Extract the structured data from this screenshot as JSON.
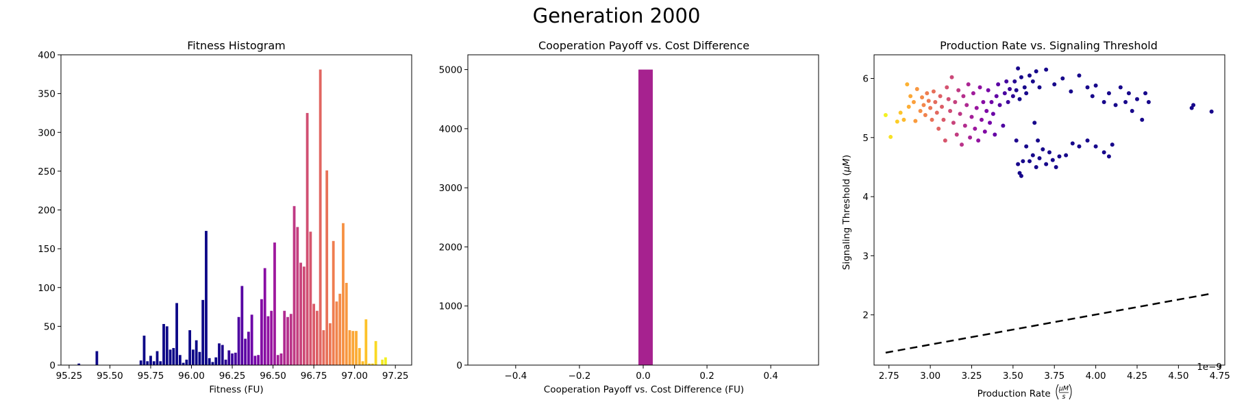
{
  "figure": {
    "suptitle": "Generation 2000"
  },
  "chart_data": [
    {
      "type": "bar",
      "title": "Fitness Histogram",
      "xlabel": "Fitness (FU)",
      "ylabel": "",
      "xlim": [
        95.2,
        97.35
      ],
      "ylim": [
        0,
        400
      ],
      "xticks": [
        95.25,
        95.5,
        95.75,
        96.0,
        96.25,
        96.5,
        96.75,
        97.0,
        97.25
      ],
      "xtick_labels": [
        "95.25",
        "95.50",
        "95.75",
        "96.00",
        "96.25",
        "96.50",
        "96.75",
        "97.00",
        "97.25"
      ],
      "yticks": [
        0,
        50,
        100,
        150,
        200,
        250,
        300,
        350,
        400
      ],
      "colormap": "plasma",
      "x": [
        95.31,
        95.42,
        95.69,
        95.71,
        95.73,
        95.75,
        95.77,
        95.79,
        95.81,
        95.83,
        95.85,
        95.87,
        95.89,
        95.91,
        95.93,
        95.95,
        95.97,
        95.99,
        96.01,
        96.03,
        96.05,
        96.07,
        96.09,
        96.11,
        96.13,
        96.15,
        96.17,
        96.19,
        96.21,
        96.23,
        96.25,
        96.27,
        96.29,
        96.31,
        96.33,
        96.35,
        96.37,
        96.39,
        96.41,
        96.43,
        96.45,
        96.47,
        96.49,
        96.51,
        96.53,
        96.55,
        96.57,
        96.59,
        96.61,
        96.63,
        96.65,
        96.67,
        96.69,
        96.71,
        96.73,
        96.75,
        96.77,
        96.79,
        96.81,
        96.83,
        96.85,
        96.87,
        96.89,
        96.91,
        96.93,
        96.95,
        96.97,
        96.99,
        97.01,
        97.03,
        97.05,
        97.07,
        97.09,
        97.11,
        97.13,
        97.15,
        97.17,
        97.19,
        97.21
      ],
      "values": [
        2,
        18,
        6,
        38,
        5,
        12,
        5,
        18,
        5,
        53,
        50,
        20,
        22,
        80,
        13,
        3,
        7,
        45,
        20,
        32,
        17,
        84,
        173,
        9,
        4,
        10,
        28,
        26,
        7,
        19,
        15,
        16,
        62,
        102,
        34,
        43,
        65,
        12,
        13,
        85,
        125,
        63,
        70,
        158,
        13,
        15,
        70,
        62,
        66,
        205,
        178,
        132,
        127,
        325,
        172,
        79,
        70,
        381,
        45,
        251,
        54,
        160,
        82,
        92,
        183,
        106,
        45,
        44,
        44,
        22,
        5,
        59,
        2,
        2,
        31,
        0,
        7,
        10,
        0
      ]
    },
    {
      "type": "bar",
      "title": "Cooperation Payoff vs. Cost Difference",
      "xlabel": "Cooperation Payoff vs. Cost Difference (FU)",
      "ylabel": "",
      "xlim": [
        -0.55,
        0.55
      ],
      "ylim": [
        0,
        5250
      ],
      "xticks": [
        -0.4,
        -0.2,
        0.0,
        0.2,
        0.4
      ],
      "xtick_labels": [
        "−0.4",
        "−0.2",
        "0.0",
        "0.2",
        "0.4"
      ],
      "yticks": [
        0,
        1000,
        2000,
        3000,
        4000,
        5000
      ],
      "color": "#a6228f",
      "bins": [
        {
          "left": -0.015,
          "right": 0.03,
          "value": 5000
        }
      ]
    },
    {
      "type": "scatter",
      "title": "Production Rate vs. Signaling Threshold",
      "xlabel_prefix": "Production Rate ",
      "xlabel_math_num": "μM",
      "xlabel_math_den": "s",
      "ylabel_prefix": "Signaling Threshold (",
      "ylabel_math": "μM",
      "ylabel_suffix": ")",
      "x_multiplier": "1e−9",
      "xlim": [
        2.66,
        4.78
      ],
      "ylim": [
        1.15,
        6.4
      ],
      "xticks": [
        2.75,
        3.0,
        3.25,
        3.5,
        3.75,
        4.0,
        4.25,
        4.5,
        4.75
      ],
      "xtick_labels": [
        "2.75",
        "3.00",
        "3.25",
        "3.50",
        "3.75",
        "4.00",
        "4.25",
        "4.50",
        "4.75"
      ],
      "yticks": [
        2,
        3,
        4,
        5,
        6
      ],
      "colormap": "plasma",
      "line": {
        "x": [
          2.73,
          4.7
        ],
        "y": [
          1.36,
          2.36
        ],
        "style": "dashed",
        "color": "#000000"
      },
      "points": [
        [
          2.73,
          5.38
        ],
        [
          2.76,
          5.01
        ],
        [
          2.8,
          5.27
        ],
        [
          2.82,
          5.42
        ],
        [
          2.84,
          5.3
        ],
        [
          2.86,
          5.9
        ],
        [
          2.87,
          5.52
        ],
        [
          2.88,
          5.7
        ],
        [
          2.9,
          5.6
        ],
        [
          2.91,
          5.28
        ],
        [
          2.92,
          5.82
        ],
        [
          2.94,
          5.45
        ],
        [
          2.95,
          5.68
        ],
        [
          2.96,
          5.55
        ],
        [
          2.97,
          5.38
        ],
        [
          2.98,
          5.75
        ],
        [
          2.99,
          5.62
        ],
        [
          3.0,
          5.5
        ],
        [
          3.01,
          5.3
        ],
        [
          3.02,
          5.78
        ],
        [
          3.03,
          5.6
        ],
        [
          3.04,
          5.42
        ],
        [
          3.05,
          5.15
        ],
        [
          3.06,
          5.7
        ],
        [
          3.07,
          5.52
        ],
        [
          3.08,
          5.3
        ],
        [
          3.09,
          4.95
        ],
        [
          3.1,
          5.85
        ],
        [
          3.11,
          5.65
        ],
        [
          3.12,
          5.45
        ],
        [
          3.13,
          6.02
        ],
        [
          3.14,
          5.25
        ],
        [
          3.15,
          5.6
        ],
        [
          3.16,
          5.05
        ],
        [
          3.17,
          5.8
        ],
        [
          3.18,
          5.4
        ],
        [
          3.19,
          4.88
        ],
        [
          3.2,
          5.7
        ],
        [
          3.21,
          5.2
        ],
        [
          3.22,
          5.55
        ],
        [
          3.23,
          5.9
        ],
        [
          3.24,
          5.0
        ],
        [
          3.25,
          5.35
        ],
        [
          3.26,
          5.75
        ],
        [
          3.27,
          5.15
        ],
        [
          3.28,
          5.5
        ],
        [
          3.29,
          4.95
        ],
        [
          3.3,
          5.85
        ],
        [
          3.31,
          5.3
        ],
        [
          3.32,
          5.6
        ],
        [
          3.33,
          5.1
        ],
        [
          3.34,
          5.45
        ],
        [
          3.35,
          5.8
        ],
        [
          3.36,
          5.25
        ],
        [
          3.37,
          5.6
        ],
        [
          3.38,
          5.4
        ],
        [
          3.39,
          5.05
        ],
        [
          3.4,
          5.7
        ],
        [
          3.41,
          5.9
        ],
        [
          3.42,
          5.55
        ],
        [
          3.44,
          5.2
        ],
        [
          3.45,
          5.75
        ],
        [
          3.46,
          5.95
        ],
        [
          3.47,
          5.6
        ],
        [
          3.48,
          5.82
        ],
        [
          3.5,
          5.7
        ],
        [
          3.51,
          5.95
        ],
        [
          3.52,
          5.8
        ],
        [
          3.53,
          6.17
        ],
        [
          3.54,
          5.65
        ],
        [
          3.55,
          6.02
        ],
        [
          3.57,
          5.85
        ],
        [
          3.58,
          5.75
        ],
        [
          3.6,
          6.05
        ],
        [
          3.62,
          5.95
        ],
        [
          3.64,
          6.12
        ],
        [
          3.66,
          5.85
        ],
        [
          3.7,
          6.15
        ],
        [
          3.75,
          5.9
        ],
        [
          3.8,
          6.0
        ],
        [
          3.85,
          5.78
        ],
        [
          3.9,
          6.05
        ],
        [
          3.95,
          5.85
        ],
        [
          3.98,
          5.7
        ],
        [
          4.0,
          5.88
        ],
        [
          4.05,
          5.6
        ],
        [
          4.08,
          5.75
        ],
        [
          4.12,
          5.55
        ],
        [
          4.15,
          5.85
        ],
        [
          4.18,
          5.6
        ],
        [
          4.2,
          5.75
        ],
        [
          4.22,
          5.45
        ],
        [
          4.25,
          5.65
        ],
        [
          4.28,
          5.3
        ],
        [
          4.3,
          5.75
        ],
        [
          4.32,
          5.6
        ],
        [
          4.58,
          5.5
        ],
        [
          4.59,
          5.55
        ],
        [
          4.7,
          5.44
        ],
        [
          3.52,
          4.95
        ],
        [
          3.53,
          4.55
        ],
        [
          3.54,
          4.4
        ],
        [
          3.55,
          4.35
        ],
        [
          3.56,
          4.6
        ],
        [
          3.58,
          4.85
        ],
        [
          3.6,
          4.6
        ],
        [
          3.62,
          4.7
        ],
        [
          3.63,
          5.25
        ],
        [
          3.64,
          4.5
        ],
        [
          3.65,
          4.95
        ],
        [
          3.66,
          4.65
        ],
        [
          3.68,
          4.8
        ],
        [
          3.7,
          4.55
        ],
        [
          3.72,
          4.75
        ],
        [
          3.74,
          4.62
        ],
        [
          3.76,
          4.5
        ],
        [
          3.78,
          4.68
        ],
        [
          3.82,
          4.7
        ],
        [
          3.86,
          4.9
        ],
        [
          3.9,
          4.85
        ],
        [
          3.95,
          4.95
        ],
        [
          4.0,
          4.85
        ],
        [
          4.05,
          4.75
        ],
        [
          4.08,
          4.68
        ],
        [
          4.1,
          4.88
        ]
      ]
    }
  ]
}
